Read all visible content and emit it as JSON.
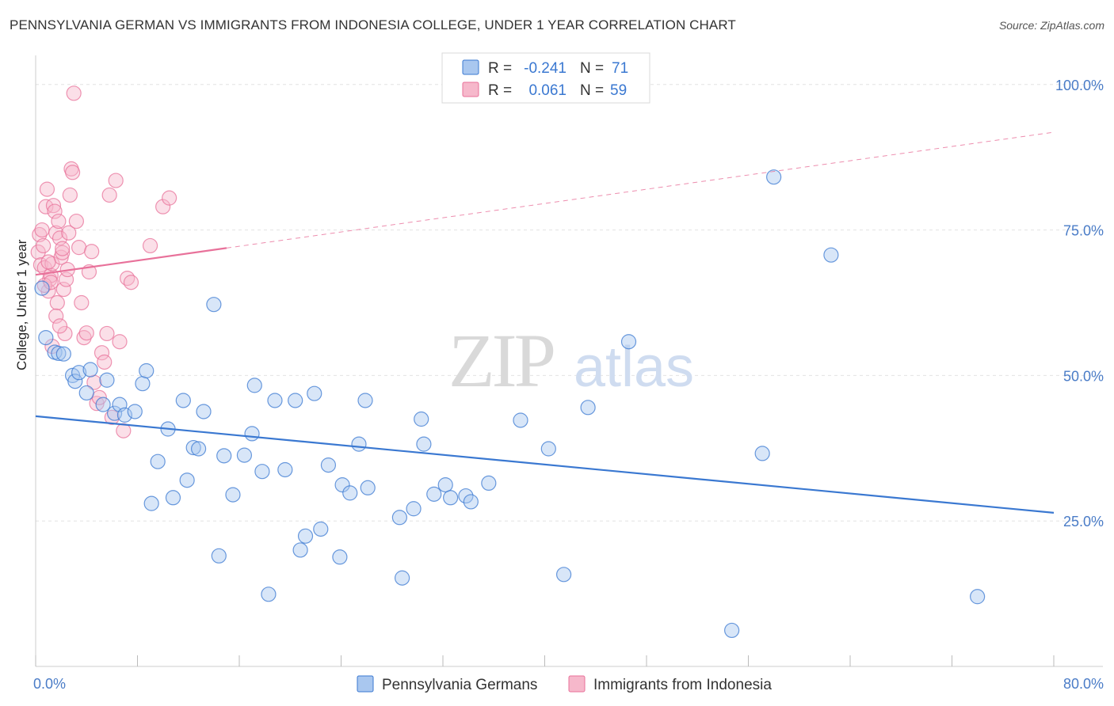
{
  "title": "PENNSYLVANIA GERMAN VS IMMIGRANTS FROM INDONESIA COLLEGE, UNDER 1 YEAR CORRELATION CHART",
  "source": "Source: ZipAtlas.com",
  "colors": {
    "blue": "#3a78d1",
    "pink": "#e8719a",
    "blue_fill": "#a9c7ef",
    "pink_fill": "#f6b8cb",
    "axis_text": "#4a7cc7",
    "grid": "#e3e3e3"
  },
  "legend": {
    "rows": [
      {
        "r_label": "R =",
        "r_value": "-0.241",
        "n_label": "N =",
        "n_value": "71",
        "series": "blue"
      },
      {
        "r_label": "R =",
        "r_value": "0.061",
        "n_label": "N =",
        "n_value": "59",
        "series": "pink"
      }
    ]
  },
  "watermark": {
    "zip": "ZIP",
    "atlas": "atlas"
  },
  "chart_data": {
    "type": "scatter",
    "xlabel": "",
    "ylabel": "College, Under 1 year",
    "xlim": [
      0,
      80
    ],
    "ylim": [
      0,
      105
    ],
    "x_tick_labels": [
      "0.0%",
      "80.0%"
    ],
    "y_ticks": [
      25,
      50,
      75,
      100
    ],
    "y_tick_labels": [
      "25.0%",
      "50.0%",
      "75.0%",
      "100.0%"
    ],
    "grid": true,
    "legend_position": "top-center",
    "series": [
      {
        "name": "Pennsylvania Germans",
        "color": "blue",
        "trend": {
          "x": [
            0,
            80
          ],
          "y": [
            43.0,
            26.4
          ],
          "dashed_to": null
        },
        "points": [
          [
            0.5,
            65
          ],
          [
            0.8,
            56.5
          ],
          [
            1.5,
            54
          ],
          [
            1.8,
            53.8
          ],
          [
            2.2,
            53.7
          ],
          [
            2.9,
            50
          ],
          [
            3.1,
            49
          ],
          [
            3.4,
            50.5
          ],
          [
            4.0,
            47
          ],
          [
            4.3,
            51
          ],
          [
            5.3,
            45
          ],
          [
            5.6,
            49.2
          ],
          [
            6.2,
            43.5
          ],
          [
            6.6,
            45
          ],
          [
            7.0,
            43.2
          ],
          [
            7.8,
            43.8
          ],
          [
            8.4,
            48.6
          ],
          [
            8.7,
            50.8
          ],
          [
            9.1,
            28
          ],
          [
            9.6,
            35.2
          ],
          [
            10.4,
            40.8
          ],
          [
            10.8,
            29
          ],
          [
            11.6,
            45.7
          ],
          [
            11.9,
            32
          ],
          [
            12.4,
            37.6
          ],
          [
            12.8,
            37.4
          ],
          [
            13.2,
            43.8
          ],
          [
            14.0,
            62.2
          ],
          [
            14.4,
            19
          ],
          [
            14.8,
            36.2
          ],
          [
            15.5,
            29.5
          ],
          [
            16.4,
            36.3
          ],
          [
            17.0,
            40
          ],
          [
            17.2,
            48.3
          ],
          [
            17.8,
            33.5
          ],
          [
            18.3,
            12.4
          ],
          [
            18.8,
            45.7
          ],
          [
            19.6,
            33.8
          ],
          [
            20.4,
            45.7
          ],
          [
            20.8,
            20
          ],
          [
            21.2,
            22.4
          ],
          [
            21.9,
            46.9
          ],
          [
            22.4,
            23.6
          ],
          [
            23.0,
            34.6
          ],
          [
            23.9,
            18.8
          ],
          [
            24.1,
            31.2
          ],
          [
            24.7,
            29.8
          ],
          [
            25.4,
            38.2
          ],
          [
            25.9,
            45.7
          ],
          [
            26.1,
            30.7
          ],
          [
            28.6,
            25.6
          ],
          [
            28.8,
            15.2
          ],
          [
            29.7,
            27.1
          ],
          [
            30.3,
            42.5
          ],
          [
            30.5,
            38.2
          ],
          [
            31.3,
            29.6
          ],
          [
            32.2,
            31.2
          ],
          [
            32.6,
            29
          ],
          [
            33.8,
            29.3
          ],
          [
            34.2,
            28.3
          ],
          [
            35.6,
            31.5
          ],
          [
            38.1,
            42.3
          ],
          [
            40.3,
            37.4
          ],
          [
            41.5,
            15.8
          ],
          [
            43.4,
            44.5
          ],
          [
            46.6,
            55.8
          ],
          [
            54.7,
            6.2
          ],
          [
            57.1,
            36.6
          ],
          [
            58.0,
            84.1
          ],
          [
            62.5,
            70.7
          ],
          [
            74.0,
            12
          ]
        ]
      },
      {
        "name": "Immigrants from Indonesia",
        "color": "pink",
        "trend": {
          "x": [
            0,
            15
          ],
          "y": [
            67.3,
            71.9
          ],
          "dashed_to": [
            80,
            91.8
          ]
        },
        "points": [
          [
            0.2,
            71.2
          ],
          [
            0.3,
            74.2
          ],
          [
            0.4,
            69
          ],
          [
            0.5,
            75
          ],
          [
            0.6,
            72.3
          ],
          [
            0.7,
            68.5
          ],
          [
            0.8,
            79
          ],
          [
            0.9,
            82
          ],
          [
            1.0,
            64.5
          ],
          [
            1.1,
            66.5
          ],
          [
            1.2,
            67.2
          ],
          [
            1.3,
            69.2
          ],
          [
            1.4,
            79.2
          ],
          [
            1.5,
            78.2
          ],
          [
            1.6,
            74.5
          ],
          [
            1.7,
            62.5
          ],
          [
            1.8,
            76.5
          ],
          [
            1.9,
            73.6
          ],
          [
            2.0,
            70.3
          ],
          [
            2.1,
            71.1
          ],
          [
            2.2,
            64.8
          ],
          [
            2.3,
            57.2
          ],
          [
            2.4,
            66.5
          ],
          [
            2.5,
            68.2
          ],
          [
            2.6,
            74.5
          ],
          [
            2.7,
            81
          ],
          [
            2.8,
            85.5
          ],
          [
            2.9,
            84.9
          ],
          [
            3.0,
            98.5
          ],
          [
            3.2,
            76.5
          ],
          [
            3.4,
            72
          ],
          [
            3.6,
            62.5
          ],
          [
            3.8,
            56.5
          ],
          [
            4.0,
            57.3
          ],
          [
            4.2,
            67.8
          ],
          [
            4.4,
            71.3
          ],
          [
            4.6,
            48.8
          ],
          [
            4.8,
            45.2
          ],
          [
            5.0,
            46.2
          ],
          [
            5.2,
            53.9
          ],
          [
            5.4,
            52.3
          ],
          [
            5.6,
            57.2
          ],
          [
            5.8,
            81
          ],
          [
            6.0,
            42.8
          ],
          [
            6.3,
            83.5
          ],
          [
            6.6,
            55.8
          ],
          [
            6.9,
            40.5
          ],
          [
            7.2,
            66.7
          ],
          [
            7.5,
            66
          ],
          [
            9.0,
            72.3
          ],
          [
            10.0,
            79
          ],
          [
            10.5,
            80.5
          ],
          [
            1.0,
            69.5
          ],
          [
            1.3,
            55
          ],
          [
            1.6,
            60.2
          ],
          [
            1.9,
            58.5
          ],
          [
            0.7,
            65.5
          ],
          [
            1.2,
            66
          ],
          [
            2.1,
            71.8
          ]
        ]
      }
    ]
  }
}
